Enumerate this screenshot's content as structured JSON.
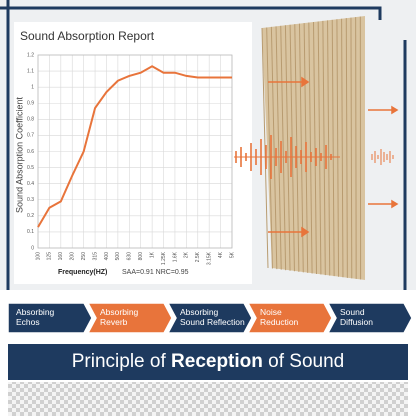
{
  "chart_data": {
    "type": "line",
    "title": "Sound Absorption Report",
    "y_label": "Sound Absorption Coefficient",
    "x_label": "Frequency(HZ)",
    "annotation": "SAA=0.91 NRC=0.95",
    "categories": [
      "100",
      "125",
      "160",
      "200",
      "250",
      "315",
      "400",
      "500",
      "630",
      "800",
      "1K",
      "1.25K",
      "1.6K",
      "2K",
      "2.5K",
      "3.15K",
      "4K",
      "5K"
    ],
    "values": [
      0.13,
      0.25,
      0.29,
      0.45,
      0.6,
      0.87,
      0.97,
      1.04,
      1.07,
      1.09,
      1.13,
      1.09,
      1.09,
      1.07,
      1.06,
      1.06,
      1.06,
      1.06
    ],
    "color": "#e8743b",
    "ylim": [
      0,
      1.2
    ],
    "yticks": [
      0,
      0.1,
      0.2,
      0.3,
      0.4,
      0.5,
      0.6,
      0.7,
      0.8,
      0.9,
      1,
      1.1,
      1.2
    ],
    "grid": true
  },
  "banners": [
    "Absorbing Echos",
    "Absorbing Reverb",
    "Absorbing Sound Reflection",
    "Noise Reduction",
    "Sound Diffusion"
  ],
  "footer": {
    "title_start": "Principle of",
    "title_bold": "Reception",
    "title_end": "of Sound"
  }
}
